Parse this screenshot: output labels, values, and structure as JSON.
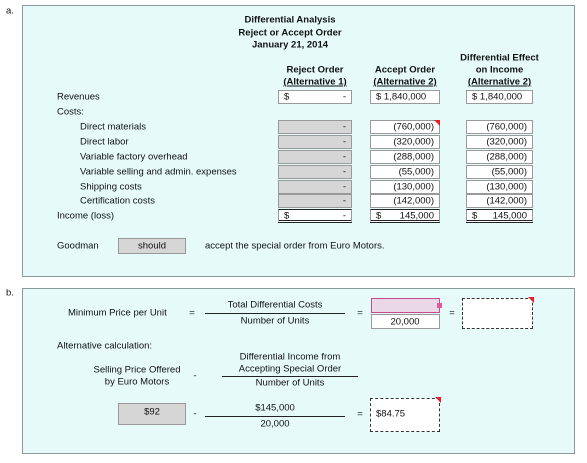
{
  "section_a": {
    "label": "a.",
    "title": [
      "Differential Analysis",
      "Reject or Accept Order",
      "January 21, 2014"
    ],
    "columns": [
      [
        "Reject Order",
        "(Alternative 1)"
      ],
      [
        "Accept Order",
        "(Alternative 2)"
      ],
      [
        "Differential Effect",
        "on Income",
        "(Alternative 2)"
      ]
    ],
    "rows": [
      {
        "label": "Revenues",
        "cells": [
          [
            "$",
            "-"
          ],
          [
            "$ 1,840,000"
          ],
          [
            "$ 1,840,000"
          ]
        ]
      },
      {
        "label": "Costs:"
      },
      {
        "label": "Direct materials",
        "cells": [
          [
            "-"
          ],
          [
            "(760,000)"
          ],
          [
            "(760,000)"
          ]
        ]
      },
      {
        "label": "Direct labor",
        "cells": [
          [
            "-"
          ],
          [
            "(320,000)"
          ],
          [
            "(320,000)"
          ]
        ]
      },
      {
        "label": "Variable factory overhead",
        "cells": [
          [
            "-"
          ],
          [
            "(288,000)"
          ],
          [
            "(288,000)"
          ]
        ]
      },
      {
        "label": "Variable selling and admin. expenses",
        "cells": [
          [
            "-"
          ],
          [
            "(55,000)"
          ],
          [
            "(55,000)"
          ]
        ]
      },
      {
        "label": "Shipping costs",
        "cells": [
          [
            "-"
          ],
          [
            "(130,000)"
          ],
          [
            "(130,000)"
          ]
        ]
      },
      {
        "label": "Certification costs",
        "cells": [
          [
            "-"
          ],
          [
            "(142,000)"
          ],
          [
            "(142,000)"
          ]
        ]
      },
      {
        "label": "Income (loss)",
        "cells": [
          [
            "$",
            "-"
          ],
          [
            "$",
            "145,000"
          ],
          [
            "$",
            "145,000"
          ]
        ]
      }
    ],
    "goodman": {
      "subject": "Goodman",
      "answer": "should",
      "rest": "accept the special order from Euro Motors."
    }
  },
  "section_b": {
    "label": "b.",
    "min_price_label": "Minimum Price per Unit",
    "equals": "=",
    "minus": "-",
    "numerator": "Total Differential Costs",
    "denominator": "Number of Units",
    "units": "20,000",
    "alt_label": "Alternative calculation:",
    "selling_price": [
      "Selling Price Offered",
      "by Euro Motors"
    ],
    "alt_numerator": [
      "Differential Income from",
      "Accepting Special Order"
    ],
    "alt_denominator": "Number of Units",
    "price": "$92",
    "income": "$145,000",
    "units_2": "20,000",
    "result": "$84.75"
  }
}
